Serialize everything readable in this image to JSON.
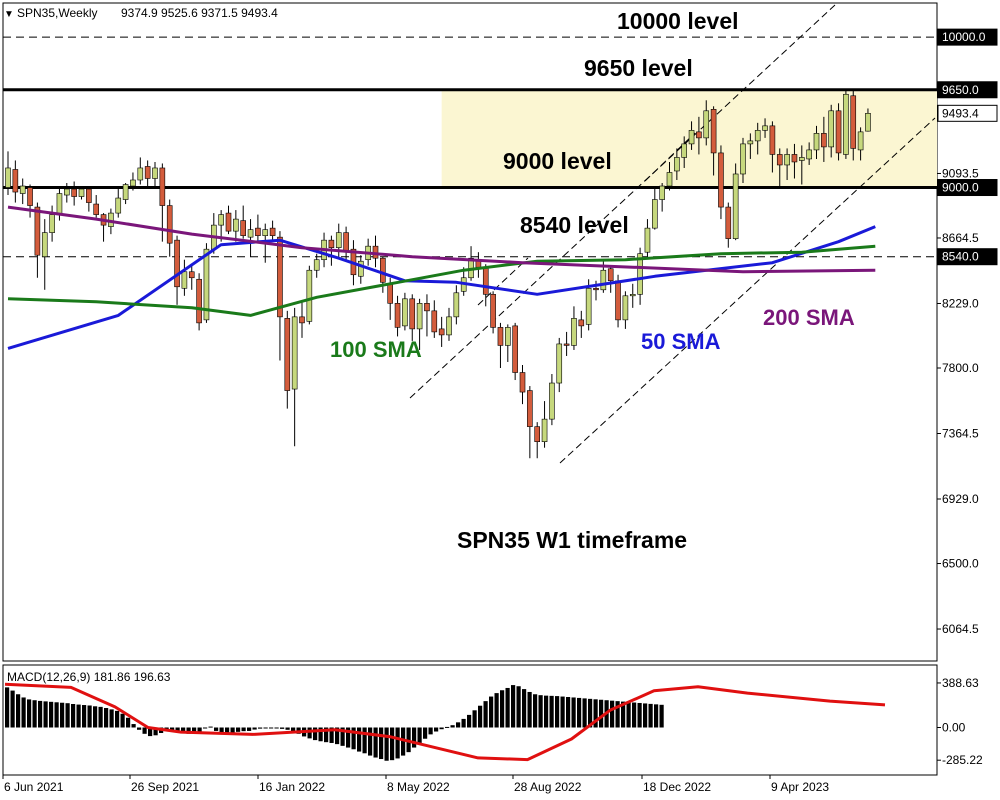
{
  "header": {
    "marker": "▼",
    "symbol": "SPN35,Weekly",
    "ohlc": "9374.9 9525.6 9371.5 9493.4"
  },
  "annotations": {
    "level_10000": "10000 level",
    "level_9650": "9650 level",
    "level_9000": "9000 level",
    "level_8540": "8540 level",
    "sma_100": "100 SMA",
    "sma_50": "50 SMA",
    "sma_200": "200 SMA",
    "timeframe": "SPN35 W1 timeframe"
  },
  "macd": {
    "label": "MACD(12,26,9) 181.86 196.63"
  },
  "colors": {
    "bull": "#c6d87d",
    "bear": "#d35c3c",
    "sma50": "#1a1ad8",
    "sma100": "#1a7a1a",
    "sma200": "#7a167a",
    "zone": "#fbf6d2",
    "signal": "#e01010",
    "histogram": "#000000"
  },
  "chart_data": [
    {
      "type": "candlestick",
      "symbol": "SPN35",
      "timeframe": "Weekly",
      "price_ticks": [
        "10000.0",
        "9650.0",
        "9493.4",
        "9093.5",
        "9000.0",
        "8664.5",
        "8540.0",
        "8229.0",
        "7800.0",
        "7364.5",
        "6929.0",
        "6500.0",
        "6064.5"
      ],
      "x_ticks": [
        "6 Jun 2021",
        "26 Sep 2021",
        "16 Jan 2022",
        "8 May 2022",
        "28 Aug 2022",
        "18 Dec 2022",
        "9 Apr 2023"
      ],
      "levels": [
        10000,
        9650,
        9000,
        8540
      ],
      "zone": [
        9000,
        9650
      ],
      "last": {
        "open": 9374.9,
        "high": 9525.6,
        "low": 9371.5,
        "close": 9493.4
      },
      "candles": [
        [
          9000,
          9130,
          9240,
          8950
        ],
        [
          9120,
          8970,
          9180,
          8900
        ],
        [
          8960,
          9010,
          9060,
          8890
        ],
        [
          9000,
          8880,
          9020,
          8800
        ],
        [
          8870,
          8550,
          8900,
          8400
        ],
        [
          8540,
          8700,
          8790,
          8320
        ],
        [
          8700,
          8820,
          8880,
          8640
        ],
        [
          8820,
          8960,
          9010,
          8780
        ],
        [
          8950,
          8990,
          9030,
          8900
        ],
        [
          8990,
          8940,
          9040,
          8880
        ],
        [
          8940,
          8990,
          9010,
          8920
        ],
        [
          8990,
          8900,
          9010,
          8840
        ],
        [
          8890,
          8820,
          8950,
          8800
        ],
        [
          8820,
          8750,
          8830,
          8640
        ],
        [
          8740,
          8830,
          8860,
          8690
        ],
        [
          8830,
          8930,
          8990,
          8800
        ],
        [
          8920,
          9020,
          9030,
          8890
        ],
        [
          9010,
          9050,
          9100,
          8980
        ],
        [
          9050,
          9130,
          9200,
          9020
        ],
        [
          9140,
          9060,
          9180,
          9000
        ],
        [
          9060,
          9130,
          9170,
          8990
        ],
        [
          9130,
          8880,
          9160,
          8640
        ],
        [
          8880,
          8630,
          8920,
          8540
        ],
        [
          8650,
          8340,
          8680,
          8220
        ],
        [
          8330,
          8440,
          8520,
          8280
        ],
        [
          8440,
          8400,
          8480,
          8320
        ],
        [
          8390,
          8100,
          8430,
          8050
        ],
        [
          8120,
          8590,
          8630,
          8100
        ],
        [
          8590,
          8750,
          8830,
          8560
        ],
        [
          8750,
          8820,
          8850,
          8640
        ],
        [
          8830,
          8710,
          8880,
          8690
        ],
        [
          8710,
          8790,
          8850,
          8640
        ],
        [
          8780,
          8680,
          8880,
          8660
        ],
        [
          8670,
          8720,
          8790,
          8540
        ],
        [
          8730,
          8680,
          8820,
          8640
        ],
        [
          8680,
          8720,
          8760,
          8500
        ],
        [
          8730,
          8680,
          8780,
          8650
        ],
        [
          8670,
          8140,
          8710,
          7850
        ],
        [
          8130,
          7650,
          8180,
          7530
        ],
        [
          7660,
          8140,
          8200,
          7280
        ],
        [
          8140,
          8100,
          8250,
          8000
        ],
        [
          8110,
          8450,
          8480,
          8090
        ],
        [
          8450,
          8520,
          8560,
          8400
        ],
        [
          8520,
          8650,
          8700,
          8470
        ],
        [
          8650,
          8600,
          8680,
          8480
        ],
        [
          8600,
          8700,
          8760,
          8540
        ],
        [
          8700,
          8580,
          8740,
          8510
        ],
        [
          8590,
          8420,
          8650,
          8350
        ],
        [
          8410,
          8510,
          8550,
          8360
        ],
        [
          8520,
          8610,
          8660,
          8480
        ],
        [
          8610,
          8530,
          8680,
          8470
        ],
        [
          8530,
          8370,
          8540,
          8300
        ],
        [
          8360,
          8230,
          8400,
          8120
        ],
        [
          8230,
          8070,
          8280,
          8010
        ],
        [
          8080,
          8260,
          8300,
          8050
        ],
        [
          8260,
          8060,
          8290,
          7980
        ],
        [
          8060,
          8230,
          8260,
          7920
        ],
        [
          8230,
          8180,
          8290,
          8010
        ],
        [
          8180,
          8040,
          8250,
          8000
        ],
        [
          8060,
          8020,
          8140,
          7940
        ],
        [
          8020,
          8140,
          8200,
          7980
        ],
        [
          8140,
          8300,
          8350,
          8090
        ],
        [
          8310,
          8400,
          8470,
          8280
        ],
        [
          8400,
          8530,
          8610,
          8380
        ],
        [
          8520,
          8470,
          8570,
          8400
        ],
        [
          8470,
          8290,
          8490,
          8210
        ],
        [
          8290,
          8070,
          8310,
          8030
        ],
        [
          8070,
          7950,
          8100,
          7800
        ],
        [
          7950,
          8070,
          8090,
          7840
        ],
        [
          8080,
          7770,
          8100,
          7720
        ],
        [
          7770,
          7640,
          7820,
          7560
        ],
        [
          7650,
          7410,
          7680,
          7200
        ],
        [
          7410,
          7310,
          7440,
          7200
        ],
        [
          7310,
          7460,
          7580,
          7270
        ],
        [
          7460,
          7700,
          7760,
          7420
        ],
        [
          7700,
          7960,
          8000,
          7640
        ],
        [
          7960,
          7950,
          8040,
          7880
        ],
        [
          7950,
          8130,
          8210,
          7920
        ],
        [
          8120,
          8080,
          8180,
          8000
        ],
        [
          8090,
          8330,
          8390,
          8050
        ],
        [
          8330,
          8320,
          8380,
          8250
        ],
        [
          8320,
          8450,
          8520,
          8300
        ],
        [
          8460,
          8380,
          8480,
          8300
        ],
        [
          8380,
          8120,
          8420,
          8070
        ],
        [
          8120,
          8280,
          8310,
          8060
        ],
        [
          8280,
          8290,
          8360,
          8200
        ],
        [
          8290,
          8560,
          8600,
          8220
        ],
        [
          8570,
          8730,
          8790,
          8540
        ],
        [
          8730,
          8920,
          9000,
          8720
        ],
        [
          8920,
          9010,
          9030,
          8840
        ],
        [
          9010,
          9100,
          9170,
          8980
        ],
        [
          9110,
          9200,
          9260,
          9050
        ],
        [
          9200,
          9290,
          9340,
          9130
        ],
        [
          9290,
          9380,
          9440,
          9250
        ],
        [
          9370,
          9330,
          9470,
          9220
        ],
        [
          9330,
          9510,
          9580,
          9280
        ],
        [
          9520,
          9230,
          9540,
          9080
        ],
        [
          9230,
          8870,
          9280,
          8790
        ],
        [
          8870,
          8660,
          8900,
          8600
        ],
        [
          8660,
          9090,
          9160,
          8650
        ],
        [
          9090,
          9290,
          9330,
          9030
        ],
        [
          9290,
          9310,
          9360,
          9190
        ],
        [
          9310,
          9380,
          9430,
          9220
        ],
        [
          9380,
          9410,
          9460,
          9330
        ],
        [
          9410,
          9220,
          9440,
          9100
        ],
        [
          9220,
          9150,
          9260,
          9010
        ],
        [
          9150,
          9220,
          9260,
          9050
        ],
        [
          9220,
          9170,
          9290,
          9060
        ],
        [
          9180,
          9200,
          9280,
          9020
        ],
        [
          9190,
          9250,
          9300,
          9150
        ],
        [
          9250,
          9360,
          9410,
          9190
        ],
        [
          9360,
          9270,
          9470,
          9170
        ],
        [
          9270,
          9510,
          9550,
          9200
        ],
        [
          9510,
          9230,
          9560,
          9180
        ],
        [
          9220,
          9620,
          9650,
          9190
        ],
        [
          9610,
          9260,
          9650,
          9180
        ],
        [
          9250,
          9370,
          9400,
          9180
        ],
        [
          9374.9,
          9493.4,
          9525.6,
          9371.5
        ]
      ],
      "series": [
        {
          "name": "50 SMA",
          "values": [
            [
              0,
              7930
            ],
            [
              15,
              8150
            ],
            [
              29,
              8620
            ],
            [
              37,
              8650
            ],
            [
              45,
              8530
            ],
            [
              54,
              8380
            ],
            [
              61,
              8370
            ],
            [
              72,
              8290
            ],
            [
              88,
              8410
            ],
            [
              104,
              8500
            ],
            [
              113,
              8640
            ],
            [
              118,
              8740
            ]
          ]
        },
        {
          "name": "100 SMA",
          "values": [
            [
              0,
              8260
            ],
            [
              12,
              8240
            ],
            [
              25,
              8200
            ],
            [
              33,
              8150
            ],
            [
              42,
              8270
            ],
            [
              52,
              8360
            ],
            [
              62,
              8450
            ],
            [
              72,
              8510
            ],
            [
              84,
              8520
            ],
            [
              97,
              8560
            ],
            [
              108,
              8570
            ],
            [
              118,
              8610
            ]
          ]
        },
        {
          "name": "200 SMA",
          "values": [
            [
              0,
              8870
            ],
            [
              12,
              8790
            ],
            [
              25,
              8690
            ],
            [
              40,
              8600
            ],
            [
              55,
              8540
            ],
            [
              70,
              8500
            ],
            [
              85,
              8470
            ],
            [
              100,
              8440
            ],
            [
              118,
              8450
            ]
          ]
        }
      ]
    },
    {
      "type": "bar",
      "name": "MACD(12,26,9)",
      "y_ticks": [
        "388.63",
        "0.00",
        "-285.22"
      ],
      "histogram": [
        350,
        322,
        290,
        262,
        245,
        238,
        232,
        228,
        224,
        220,
        216,
        212,
        205,
        200,
        196,
        192,
        185,
        180,
        170,
        158,
        145,
        120,
        85,
        30,
        -20,
        -55,
        -75,
        -68,
        -48,
        -20,
        -28,
        -35,
        -42,
        -55,
        -48,
        -35,
        -5,
        8,
        -30,
        -50,
        -62,
        -48,
        -38,
        -32,
        -30,
        -18,
        -10,
        -5,
        0,
        -6,
        -12,
        -20,
        -40,
        -55,
        -78,
        -95,
        -110,
        -120,
        -128,
        -135,
        -145,
        -160,
        -175,
        -190,
        -210,
        -225,
        -245,
        -262,
        -275,
        -290,
        -285,
        -270,
        -245,
        -215,
        -175,
        -138,
        -98,
        -60,
        -35,
        -15,
        5,
        20,
        45,
        75,
        110,
        150,
        190,
        230,
        270,
        300,
        325,
        345,
        370,
        360,
        335,
        310,
        290,
        282,
        278,
        276,
        274,
        270,
        266,
        262,
        258,
        254,
        250,
        246,
        242,
        238,
        234,
        230,
        226,
        222,
        218,
        214,
        210,
        206,
        202,
        198
      ],
      "signal": [
        [
          0,
          378
        ],
        [
          12,
          350
        ],
        [
          20,
          180
        ],
        [
          26,
          0
        ],
        [
          32,
          -40
        ],
        [
          45,
          -60
        ],
        [
          60,
          -20
        ],
        [
          70,
          -80
        ],
        [
          86,
          -265
        ],
        [
          95,
          -280
        ],
        [
          103,
          -100
        ],
        [
          110,
          150
        ],
        [
          118,
          320
        ],
        [
          126,
          355
        ],
        [
          135,
          300
        ],
        [
          150,
          230
        ],
        [
          160,
          197
        ]
      ]
    }
  ]
}
